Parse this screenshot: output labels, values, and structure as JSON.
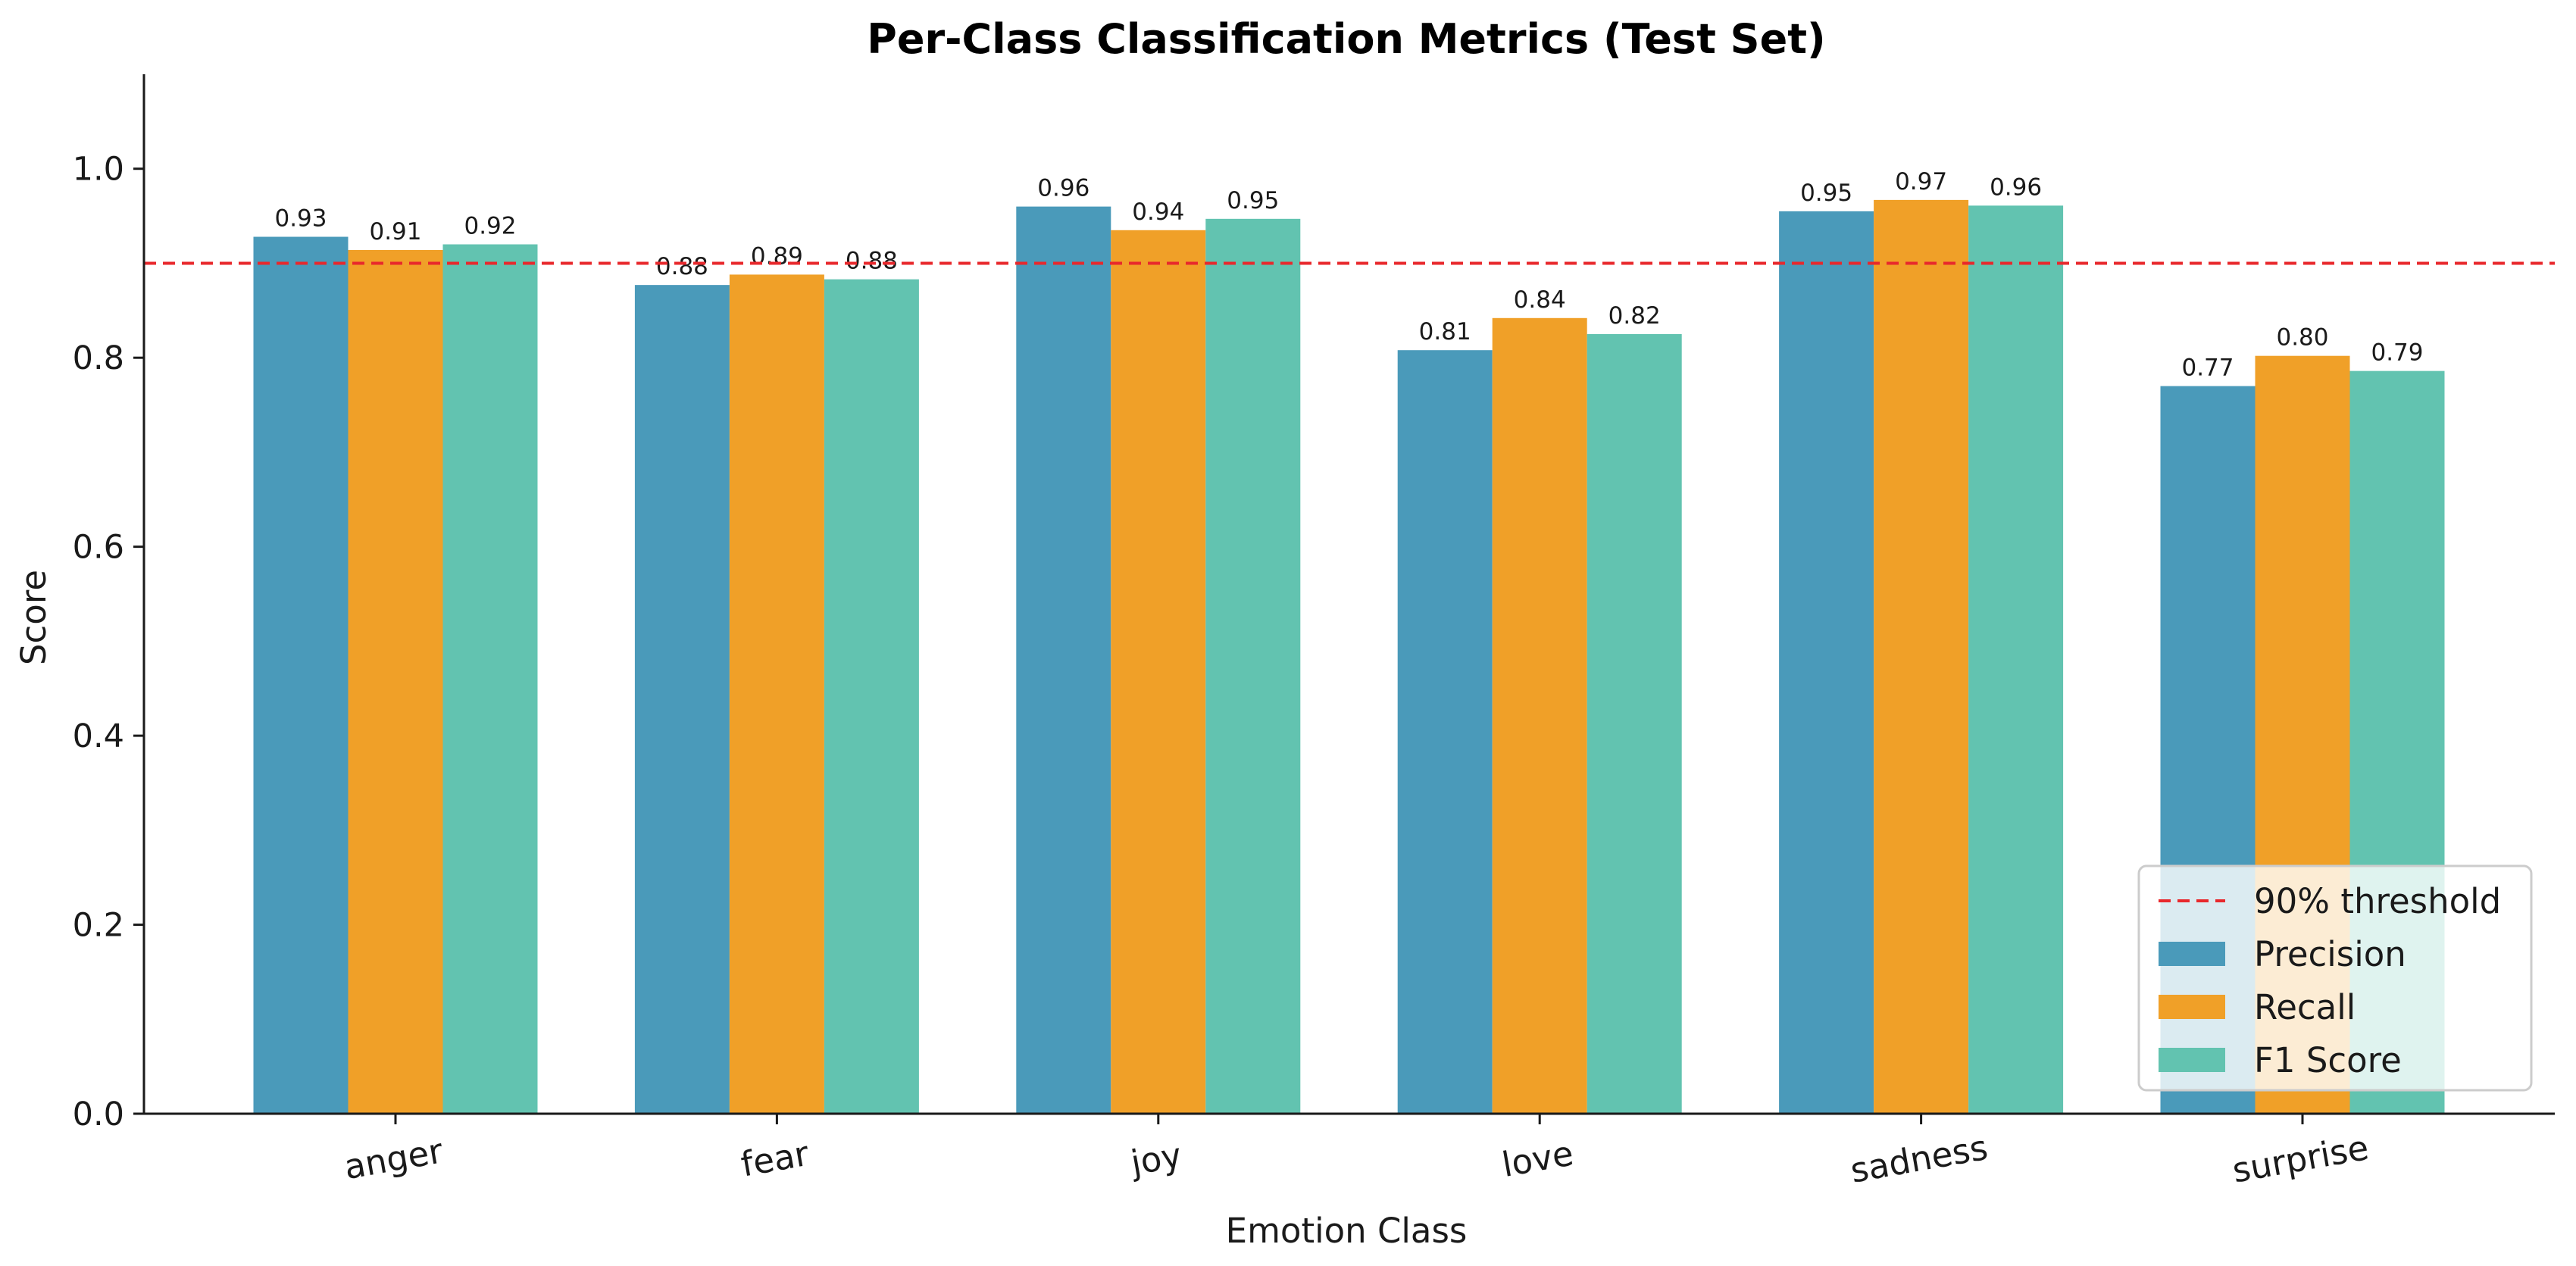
{
  "chart_data": {
    "type": "bar",
    "title": "Per-Class Classification Metrics (Test Set)",
    "xlabel": "Emotion Class",
    "ylabel": "Score",
    "ylim": [
      0,
      1.1
    ],
    "yticks": [
      0.0,
      0.2,
      0.4,
      0.6,
      0.8,
      1.0
    ],
    "ytick_labels": [
      "0.0",
      "0.2",
      "0.4",
      "0.6",
      "0.8",
      "1.0"
    ],
    "categories": [
      "anger",
      "fear",
      "joy",
      "love",
      "sadness",
      "surprise"
    ],
    "series": [
      {
        "name": "Precision",
        "color": "#4a9aba",
        "values": [
          0.928,
          0.877,
          0.96,
          0.808,
          0.955,
          0.77
        ],
        "labels": [
          "0.93",
          "0.88",
          "0.96",
          "0.81",
          "0.95",
          "0.77"
        ]
      },
      {
        "name": "Recall",
        "color": "#f0a028",
        "values": [
          0.914,
          0.888,
          0.935,
          0.842,
          0.967,
          0.802
        ],
        "labels": [
          "0.91",
          "0.89",
          "0.94",
          "0.84",
          "0.97",
          "0.80"
        ]
      },
      {
        "name": "F1 Score",
        "color": "#62c3b0",
        "values": [
          0.92,
          0.883,
          0.947,
          0.825,
          0.961,
          0.786
        ],
        "labels": [
          "0.92",
          "0.88",
          "0.95",
          "0.82",
          "0.96",
          "0.79"
        ]
      }
    ],
    "threshold": {
      "value": 0.9,
      "label": "90% threshold",
      "color": "#e8282c",
      "style": "dashed"
    },
    "legend_position": "lower-right",
    "grid": false
  }
}
